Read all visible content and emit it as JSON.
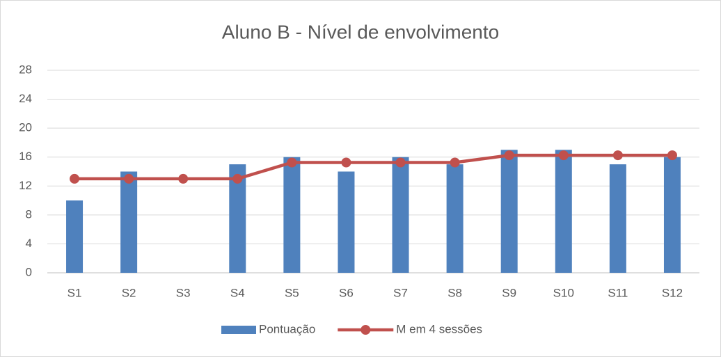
{
  "chart_data": {
    "type": "bar",
    "title": "Aluno B - Nível de envolvimento",
    "categories": [
      "S1",
      "S2",
      "S3",
      "S4",
      "S5",
      "S6",
      "S7",
      "S8",
      "S9",
      "S10",
      "S11",
      "S12"
    ],
    "series": [
      {
        "name": "Pontuação",
        "type": "bar",
        "color": "#4f81bd",
        "values": [
          10,
          14,
          null,
          15,
          16,
          14,
          16,
          15,
          17,
          17,
          15,
          16
        ]
      },
      {
        "name": "M em 4 sessões",
        "type": "line",
        "color": "#c0504d",
        "values": [
          13,
          13,
          13,
          13,
          15.25,
          15.25,
          15.25,
          15.25,
          16.25,
          16.25,
          16.25,
          16.25
        ]
      }
    ],
    "ylim": [
      0,
      28
    ],
    "yticks": [
      0,
      4,
      8,
      12,
      16,
      20,
      24,
      28
    ],
    "grid": true,
    "legend": "bottom"
  }
}
